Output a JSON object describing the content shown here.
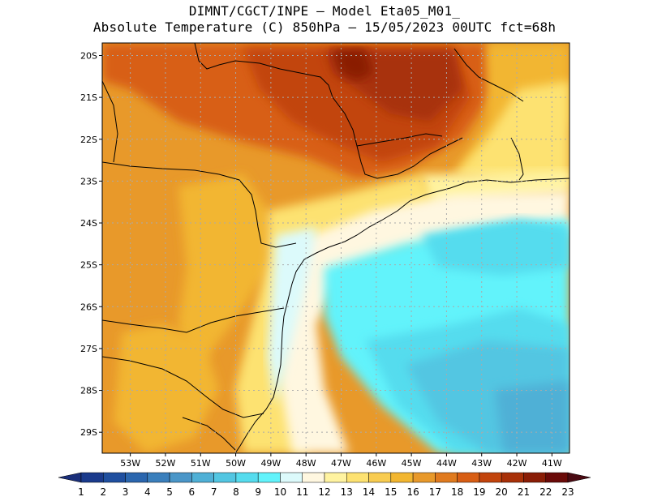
{
  "title_line1": "DIMNT/CGCT/INPE —  Model Eta05_M01_",
  "title_line2": "Absolute Temperature (C) 850hPa —  15/05/2023 00UTC fct=68h",
  "lat_labels": [
    "20S",
    "21S",
    "22S",
    "23S",
    "24S",
    "25S",
    "26S",
    "27S",
    "28S",
    "29S"
  ],
  "lon_labels": [
    "53W",
    "52W",
    "51W",
    "50W",
    "49W",
    "48W",
    "47W",
    "46W",
    "45W",
    "44W",
    "43W",
    "42W",
    "41W"
  ],
  "colorbar": {
    "labels": [
      "1",
      "2",
      "3",
      "4",
      "5",
      "6",
      "7",
      "8",
      "9",
      "10",
      "11",
      "12",
      "13",
      "14",
      "15",
      "16",
      "17",
      "18",
      "19",
      "20",
      "21",
      "22",
      "23"
    ],
    "colors": [
      "#1a3a8c",
      "#1f4f9f",
      "#2a66ae",
      "#3a7fbc",
      "#4a96c8",
      "#4fb0d6",
      "#52c6e2",
      "#55dcee",
      "#62f3fb",
      "#dcfafb",
      "#fff7e0",
      "#fff3a0",
      "#fde271",
      "#f8cc50",
      "#f2b630",
      "#e8992a",
      "#e07a1e",
      "#d85e14",
      "#c2440c",
      "#a83008",
      "#8a1d06",
      "#6a0a08"
    ]
  },
  "grid": {
    "lon_min": -53.8,
    "lon_max": -40.5,
    "lat_min": -29.5,
    "lat_max": -19.7
  }
}
